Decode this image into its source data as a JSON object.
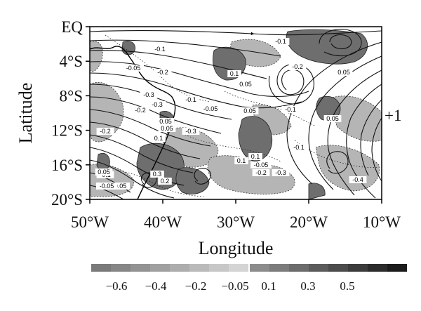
{
  "map": {
    "y_ticks": [
      "EQ",
      "4°S",
      "8°S",
      "12°S",
      "16°S",
      "20°S"
    ],
    "x_ticks": [
      "50°W",
      "40°W",
      "30°W",
      "20°W",
      "10°W"
    ],
    "ylabel": "Latitude",
    "xlabel": "Longitude",
    "side_label": "+1",
    "contour_labels": [
      "-0.1",
      "-0.05",
      "-0.2",
      "0.1",
      "0.05",
      "-0.1",
      "-0.2",
      "0.05",
      "-0.3",
      "-0.2",
      "0.05",
      "-0.3",
      "0.1",
      "-0.1",
      "0.05",
      "-0.05",
      "-0.1",
      "-0.05",
      "0.3",
      "0.2",
      "0.1",
      "-0.05",
      "-0.2",
      "-0.3",
      "-0.3",
      "-0.4",
      "0.05",
      "-0.05",
      "0.05",
      "0.05",
      "-0.1",
      "-0.2",
      "0.1",
      "-0.1"
    ]
  },
  "colorbar": {
    "negative_labels": [
      "-0.6",
      "-0.4",
      "-0.2",
      "-0.05"
    ],
    "positive_labels": [
      "0.1",
      "0.3",
      "0.5"
    ],
    "negative_colors": [
      "#7a7a7a",
      "#868686",
      "#939393",
      "#a0a0a0",
      "#adadad",
      "#bababa",
      "#c7c7c7",
      "#d4d4d4"
    ],
    "positive_colors": [
      "#8c8c8c",
      "#7c7c7c",
      "#6c6c6c",
      "#5c5c5c",
      "#4c4c4c",
      "#3c3c3c",
      "#2c2c2c",
      "#1c1c1c"
    ]
  }
}
